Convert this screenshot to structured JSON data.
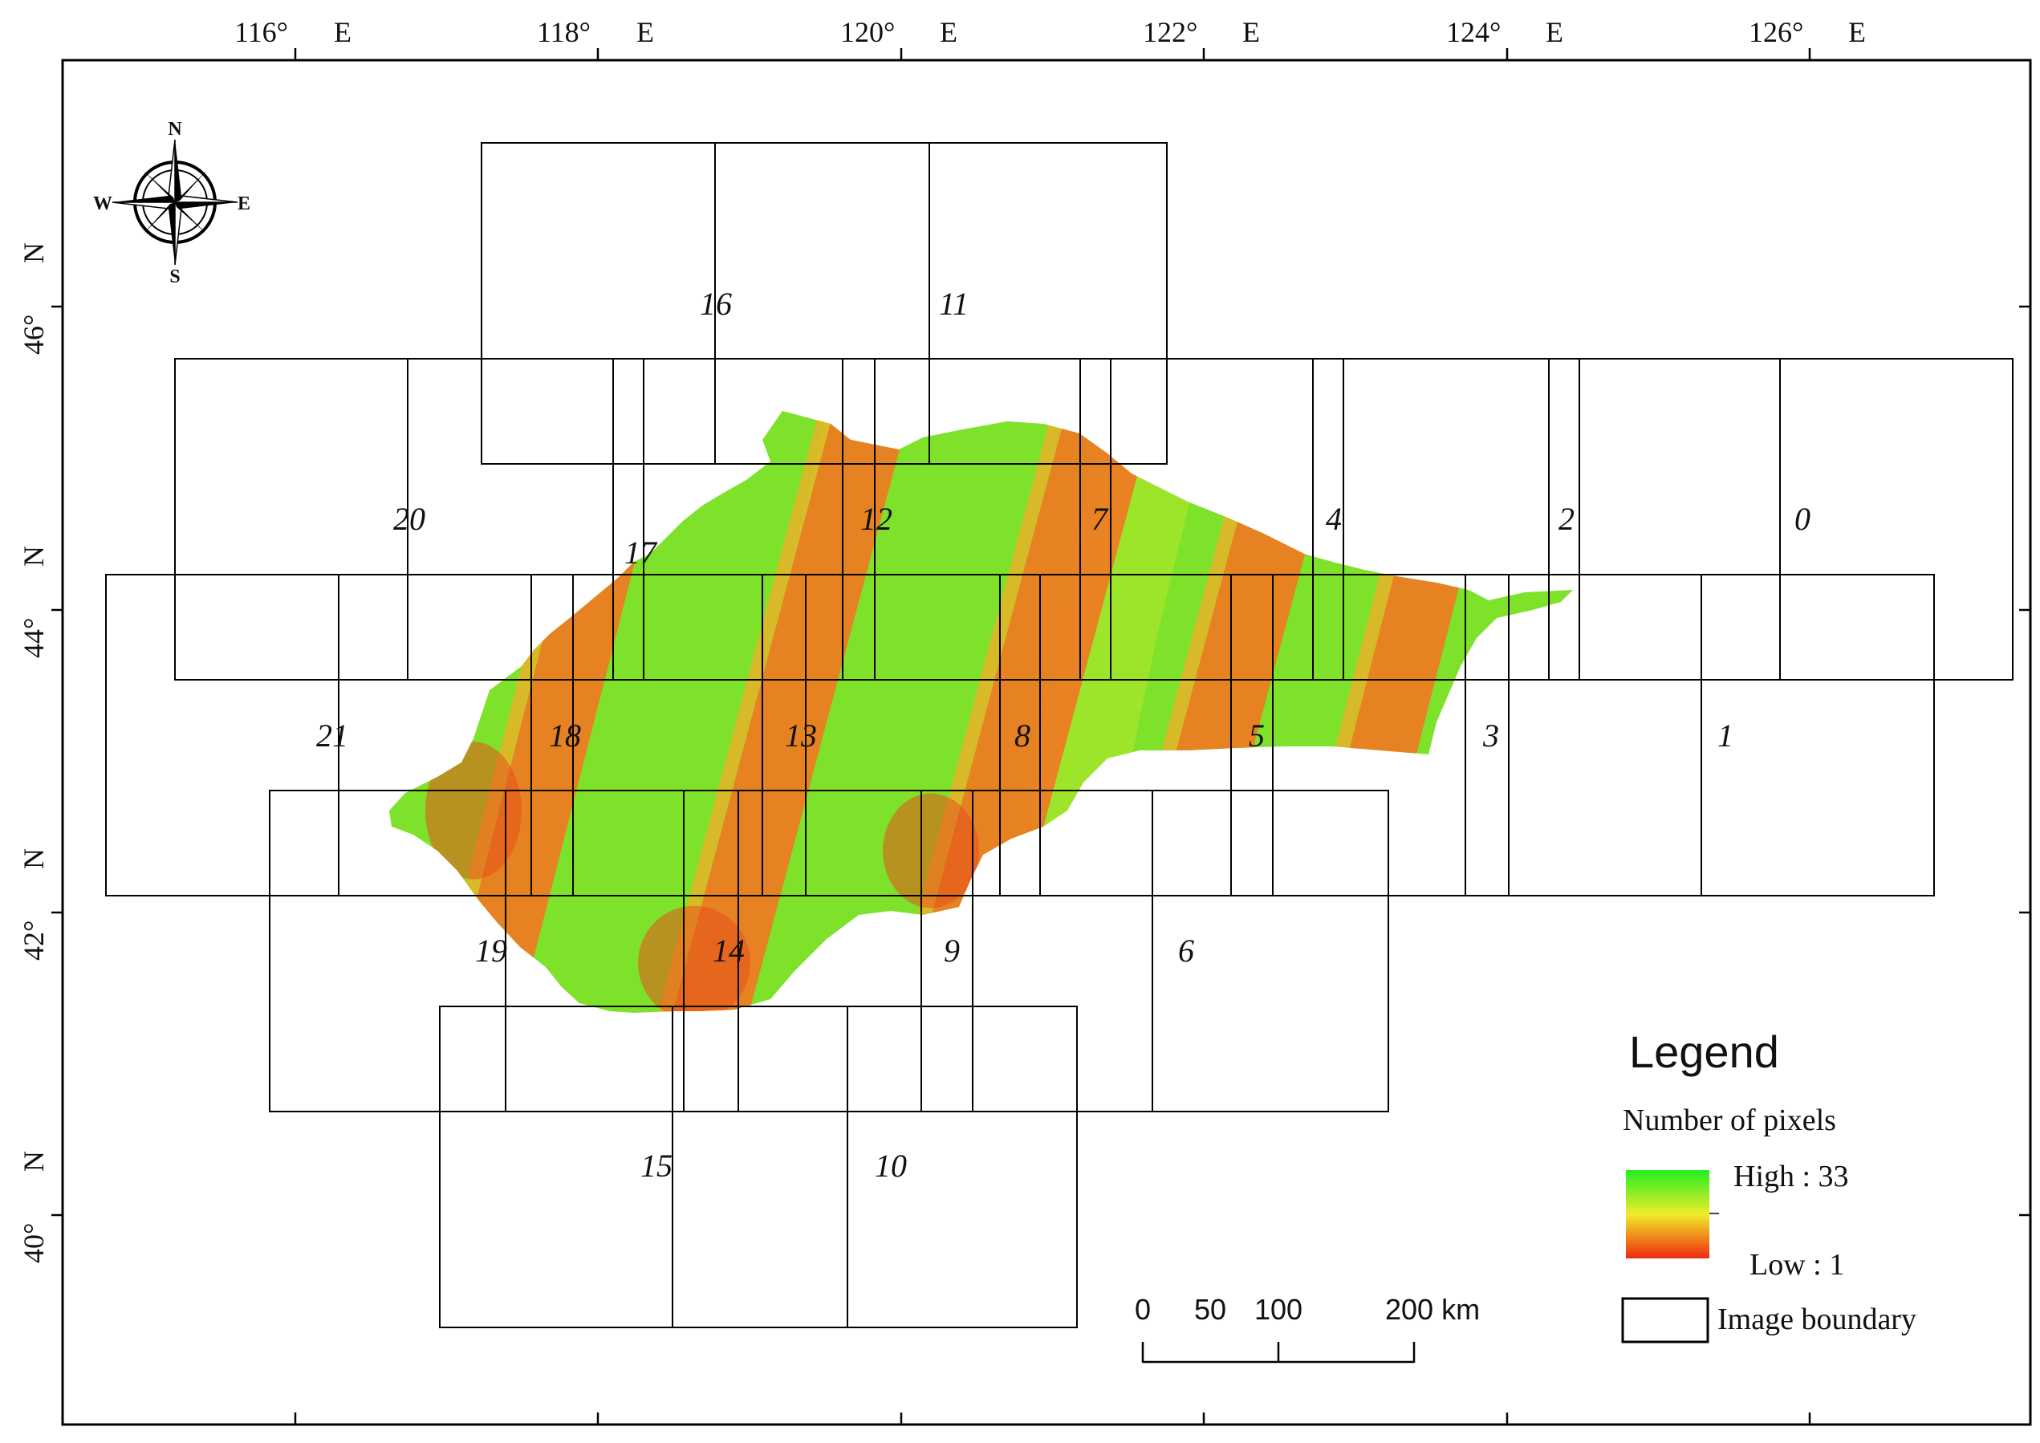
{
  "map": {
    "graticule": {
      "longitude_labels": [
        {
          "deg": "116°",
          "hemi": "E"
        },
        {
          "deg": "118°",
          "hemi": "E"
        },
        {
          "deg": "120°",
          "hemi": "E"
        },
        {
          "deg": "122°",
          "hemi": "E"
        },
        {
          "deg": "124°",
          "hemi": "E"
        },
        {
          "deg": "126°",
          "hemi": "E"
        }
      ],
      "latitude_labels": [
        {
          "deg": "46°",
          "hemi": "N"
        },
        {
          "deg": "44°",
          "hemi": "N"
        },
        {
          "deg": "42°",
          "hemi": "N"
        },
        {
          "deg": "40°",
          "hemi": "N"
        }
      ]
    },
    "compass": {
      "n": "N",
      "s": "S",
      "e": "E",
      "w": "W"
    },
    "tile_labels": [
      "0",
      "1",
      "2",
      "3",
      "4",
      "5",
      "6",
      "7",
      "8",
      "9",
      "10",
      "11",
      "12",
      "13",
      "14",
      "15",
      "16",
      "17",
      "18",
      "19",
      "20",
      "21"
    ],
    "legend": {
      "title": "Legend",
      "subtitle": "Number of pixels",
      "high_label": "High : 33",
      "low_label": "Low : 1",
      "boundary_label": "Image boundary",
      "colors": {
        "high": "#22ee22",
        "mid": "#f0ec2a",
        "low": "#ee2a10"
      }
    },
    "scale_bar": {
      "labels": [
        "0",
        "50",
        "100",
        "200 km"
      ]
    }
  }
}
